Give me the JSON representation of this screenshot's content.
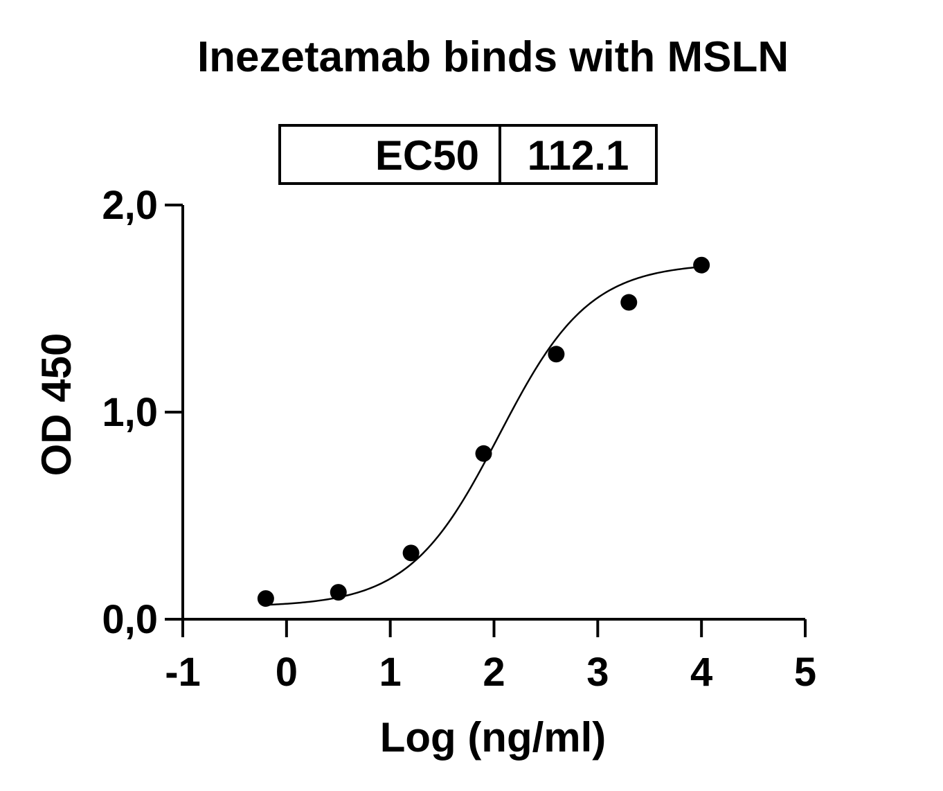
{
  "chart_data": {
    "type": "scatter",
    "title": "Inezetamab binds with MSLN",
    "xlabel": "Log (ng/ml)",
    "ylabel": "OD 450",
    "xlim": [
      -1,
      5
    ],
    "ylim": [
      0.0,
      2.0
    ],
    "x_ticks": [
      "-1",
      "0",
      "1",
      "2",
      "3",
      "4",
      "5"
    ],
    "y_ticks": [
      "0,0",
      "1,0",
      "2,0"
    ],
    "points": [
      {
        "x": -0.2,
        "y": 0.1
      },
      {
        "x": 0.5,
        "y": 0.13
      },
      {
        "x": 1.2,
        "y": 0.32
      },
      {
        "x": 1.9,
        "y": 0.8
      },
      {
        "x": 2.6,
        "y": 1.28
      },
      {
        "x": 3.3,
        "y": 1.53
      },
      {
        "x": 4.0,
        "y": 1.71
      }
    ],
    "fit": {
      "model": "4PL",
      "bottom": 0.06,
      "top": 1.72,
      "log_ec50": 2.05,
      "hill_slope": 1.0,
      "x_range": [
        -0.2,
        4.0
      ]
    },
    "ec50_table": {
      "label": "EC50",
      "value": "112.1"
    }
  }
}
